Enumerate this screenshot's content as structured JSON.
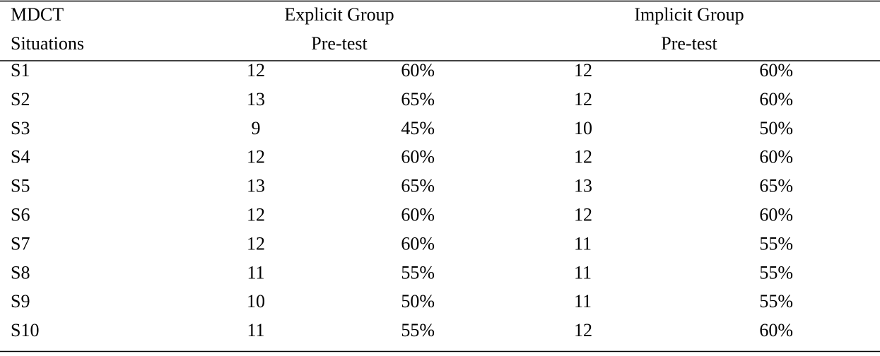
{
  "table": {
    "header": {
      "first": [
        "MDCT",
        "Situations"
      ],
      "explicit": [
        "Explicit Group",
        "Pre-test"
      ],
      "implicit": [
        "Implicit Group",
        "Pre-test"
      ]
    },
    "rows": [
      [
        "S1",
        "12",
        "60%",
        "12",
        "60%"
      ],
      [
        "S2",
        "13",
        "65%",
        "12",
        "60%"
      ],
      [
        "S3",
        "9",
        "45%",
        "10",
        "50%"
      ],
      [
        "S4",
        "12",
        "60%",
        "12",
        "60%"
      ],
      [
        "S5",
        "13",
        "65%",
        "13",
        "65%"
      ],
      [
        "S6",
        "12",
        "60%",
        "12",
        "60%"
      ],
      [
        "S7",
        "12",
        "60%",
        "11",
        "55%"
      ],
      [
        "S8",
        "11",
        "55%",
        "11",
        "55%"
      ],
      [
        "S9",
        "10",
        "50%",
        "11",
        "55%"
      ],
      [
        "S10",
        "11",
        "55%",
        "12",
        "60%"
      ]
    ]
  }
}
